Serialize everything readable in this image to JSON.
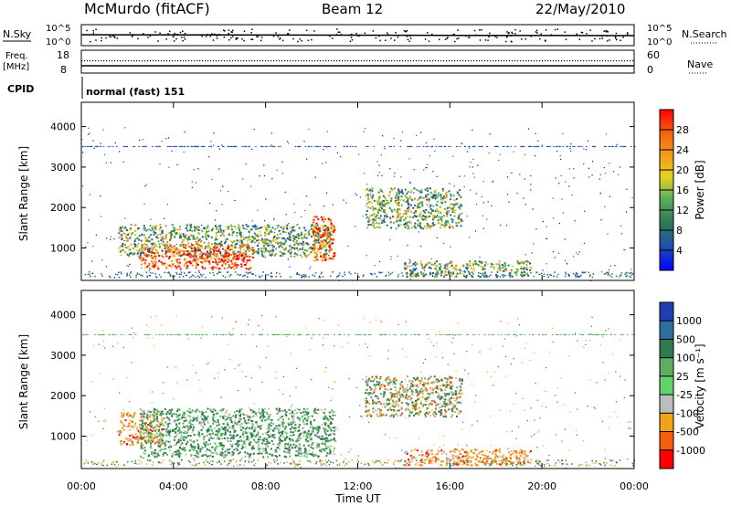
{
  "header": {
    "radar": "McMurdo (fitACF)",
    "beam": "Beam 12",
    "date": "22/May/2010"
  },
  "top_panels": {
    "nsky_label": "N.Sky",
    "nsky_ticks": [
      "10^5",
      "10^0"
    ],
    "nsearch_label": "N.Search",
    "nsearch_ticks": [
      "10^5",
      "10^0"
    ],
    "freq_label": "Freq.",
    "freq_unit": "[MHz]",
    "freq_ticks": [
      "18",
      "8"
    ],
    "nave_label": "Nave",
    "nave_ticks": [
      "60",
      "0"
    ],
    "cpid_label": "CPID",
    "cpid_value": "normal (fast) 151"
  },
  "chart_data": [
    {
      "type": "heatmap",
      "name": "power",
      "ylabel": "Slant Range [km]",
      "yticks": [
        1000,
        2000,
        3000,
        4000
      ],
      "ylim": [
        200,
        4600
      ],
      "xlim": [
        0,
        24
      ],
      "colorbar": {
        "label": "Power [dB]",
        "ticks": [
          "4",
          "8",
          "12",
          "16",
          "20",
          "24",
          "28"
        ],
        "colors": [
          "#0000ff",
          "#1f4fb0",
          "#2f7a4f",
          "#5fae5f",
          "#e8d21e",
          "#f39a1a",
          "#f36010",
          "#ff0000"
        ]
      },
      "regions": [
        {
          "x0": 1.6,
          "x1": 10.8,
          "y0": 800,
          "y1": 1600,
          "level": "medium"
        },
        {
          "x0": 2.5,
          "x1": 7.5,
          "y0": 500,
          "y1": 1100,
          "level": "high"
        },
        {
          "x0": 10.0,
          "x1": 11.0,
          "y0": 700,
          "y1": 1800,
          "level": "high"
        },
        {
          "x0": 12.3,
          "x1": 16.5,
          "y0": 1500,
          "y1": 2500,
          "level": "medium"
        },
        {
          "x0": 14.0,
          "x1": 19.5,
          "y0": 300,
          "y1": 700,
          "level": "medium"
        }
      ]
    },
    {
      "type": "heatmap",
      "name": "velocity",
      "ylabel": "Slant Range [km]",
      "yticks": [
        1000,
        2000,
        3000,
        4000
      ],
      "ylim": [
        200,
        4600
      ],
      "xlim": [
        0,
        24
      ],
      "xticks": [
        "00:00",
        "04:00",
        "08:00",
        "12:00",
        "16:00",
        "20:00",
        "00:00"
      ],
      "xlabel": "Time UT",
      "colorbar": {
        "label": "Velocity [m s⁻¹]",
        "ticks": [
          "1000",
          "500",
          "100",
          "25",
          "-25",
          "-100",
          "-500",
          "-1000"
        ],
        "colors": [
          "#1f3fb0",
          "#2f6fa0",
          "#2f7a4f",
          "#5fae5f",
          "#66d26a",
          "#bcbcbc",
          "#f3a31a",
          "#f36010",
          "#ff0000"
        ]
      },
      "regions": [
        {
          "x0": 1.6,
          "x1": 3.5,
          "y0": 800,
          "y1": 1600,
          "level": "negative"
        },
        {
          "x0": 2.5,
          "x1": 11.0,
          "y0": 500,
          "y1": 1700,
          "level": "positive"
        },
        {
          "x0": 12.3,
          "x1": 16.5,
          "y0": 1500,
          "y1": 2500,
          "level": "mixed"
        },
        {
          "x0": 14.0,
          "x1": 19.5,
          "y0": 300,
          "y1": 700,
          "level": "negative"
        }
      ]
    }
  ]
}
